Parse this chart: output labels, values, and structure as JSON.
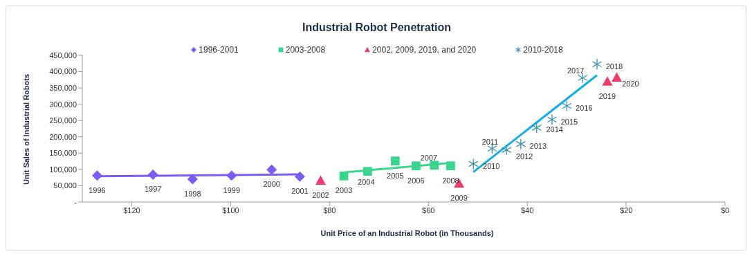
{
  "chart_data": {
    "type": "scatter",
    "title": "Industrial Robot Penetration",
    "xlabel": "Unit Price of an Industrial Robot (in Thousands)",
    "ylabel": "Unit Sales of Industrial Robots",
    "legend": "top",
    "grid": false,
    "xlim": [
      130,
      0
    ],
    "xticks": [
      {
        "value": 120,
        "label": "$120"
      },
      {
        "value": 100,
        "label": "$100"
      },
      {
        "value": 80,
        "label": "$80"
      },
      {
        "value": 60,
        "label": "$60"
      },
      {
        "value": 40,
        "label": "$40"
      },
      {
        "value": 20,
        "label": "$20"
      },
      {
        "value": 0,
        "label": "$0"
      }
    ],
    "ylim": [
      0,
      450000
    ],
    "yticks": [
      {
        "value": 0,
        "label": "-"
      },
      {
        "value": 50000,
        "label": "50,000"
      },
      {
        "value": 100000,
        "label": "100,000"
      },
      {
        "value": 150000,
        "label": "150,000"
      },
      {
        "value": 200000,
        "label": "200,000"
      },
      {
        "value": 250000,
        "label": "250,000"
      },
      {
        "value": 300000,
        "label": "300,000"
      },
      {
        "value": 350000,
        "label": "350,000"
      },
      {
        "value": 400000,
        "label": "400,000"
      },
      {
        "value": 450000,
        "label": "450,000"
      }
    ],
    "series": [
      {
        "name": "1996-2001",
        "marker": "diamond",
        "color": "#7b5cf5",
        "x": [
          127,
          115.7,
          107.7,
          99.8,
          91.7,
          86
        ],
        "values": [
          81000,
          84000,
          70000,
          81000,
          99000,
          78000
        ]
      },
      {
        "name": "2003-2008",
        "marker": "square",
        "color": "#3ad68e",
        "x": [
          77.1,
          72.3,
          66.7,
          62.5,
          58.8,
          55.5
        ],
        "values": [
          80000,
          94000,
          126000,
          111000,
          113000,
          111000
        ]
      },
      {
        "name": "2002, 2009, 2019, and 2020",
        "marker": "triangle",
        "color": "#ef3b6a",
        "x": [
          81.8,
          53.8,
          23.8,
          21.9
        ],
        "values": [
          66000,
          57000,
          370000,
          382000
        ]
      },
      {
        "name": "2010-2018",
        "marker": "cross",
        "color": "#3a93a6",
        "x": [
          50.9,
          47.1,
          44.2,
          41.3,
          38.1,
          35,
          32,
          28.8,
          25.9
        ],
        "values": [
          117000,
          164000,
          160000,
          178000,
          228000,
          253000,
          295000,
          381000,
          423000
        ]
      },
      {
        "type": "line",
        "marker": "none",
        "color": "#7b5cf5",
        "x": [
          127,
          86
        ],
        "values": [
          79000,
          85000
        ]
      },
      {
        "type": "line",
        "marker": "none",
        "color": "#3ad68e",
        "x": [
          77.1,
          55.5
        ],
        "values": [
          91000,
          120000
        ]
      },
      {
        "type": "line",
        "marker": "none",
        "color": "#13aee8",
        "x": [
          50.9,
          25.9
        ],
        "values": [
          92000,
          389000
        ]
      }
    ],
    "annotations": [
      {
        "text": "1996",
        "x": 127,
        "y": 81000
      },
      {
        "text": "1997",
        "x": 115.7,
        "y": 84000
      },
      {
        "text": "1998",
        "x": 107.7,
        "y": 70000
      },
      {
        "text": "1999",
        "x": 99.8,
        "y": 81000
      },
      {
        "text": "2000",
        "x": 91.7,
        "y": 99000
      },
      {
        "text": "2001",
        "x": 86,
        "y": 78000
      },
      {
        "text": "2002",
        "x": 81.8,
        "y": 66000
      },
      {
        "text": "2003",
        "x": 77.1,
        "y": 80000
      },
      {
        "text": "2004",
        "x": 72.3,
        "y": 94000
      },
      {
        "text": "2005",
        "x": 66.7,
        "y": 126000
      },
      {
        "text": "2006",
        "x": 62.5,
        "y": 111000
      },
      {
        "text": "2007",
        "x": 58.8,
        "y": 113000
      },
      {
        "text": "2008",
        "x": 55.5,
        "y": 111000
      },
      {
        "text": "2009",
        "x": 53.8,
        "y": 57000
      },
      {
        "text": "2010",
        "x": 50.9,
        "y": 117000
      },
      {
        "text": "2011",
        "x": 47.1,
        "y": 164000
      },
      {
        "text": "2012",
        "x": 44.2,
        "y": 160000
      },
      {
        "text": "2013",
        "x": 41.3,
        "y": 178000
      },
      {
        "text": "2014",
        "x": 38.1,
        "y": 228000
      },
      {
        "text": "2015",
        "x": 35,
        "y": 253000
      },
      {
        "text": "2016",
        "x": 32,
        "y": 295000
      },
      {
        "text": "2017",
        "x": 28.8,
        "y": 381000
      },
      {
        "text": "2018",
        "x": 25.9,
        "y": 423000
      },
      {
        "text": "2019",
        "x": 23.8,
        "y": 370000
      },
      {
        "text": "2020",
        "x": 21.9,
        "y": 382000
      }
    ]
  }
}
